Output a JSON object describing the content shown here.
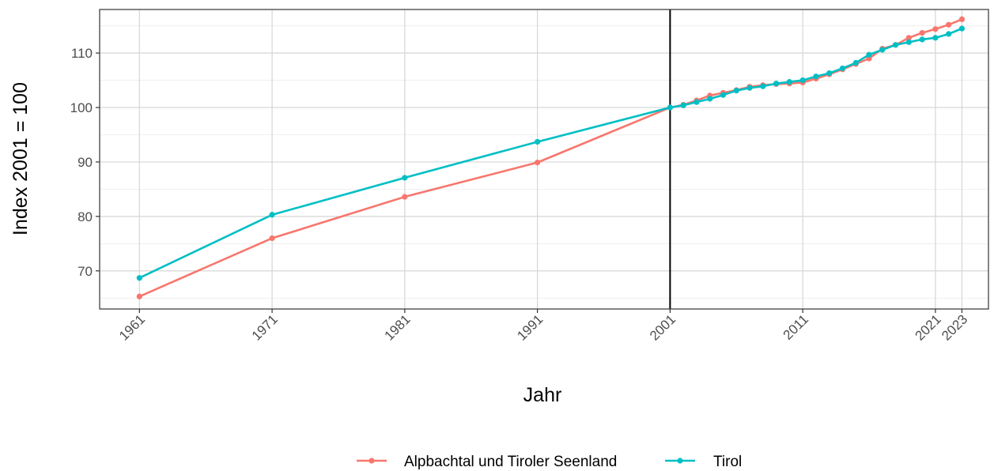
{
  "chart_data": {
    "type": "line",
    "xlabel": "Jahr",
    "ylabel": "Index 2001 = 100",
    "xlim": [
      1958,
      2025
    ],
    "ylim": [
      63,
      118
    ],
    "x_ticks": [
      1961,
      1971,
      1981,
      1991,
      2001,
      2011,
      2021,
      2023
    ],
    "y_ticks": [
      70,
      80,
      90,
      100,
      110
    ],
    "grid": true,
    "reference_line_x": 2001,
    "legend_position": "bottom",
    "series": [
      {
        "name": "Alpbachtal und Tiroler Seenland",
        "color": "#F8766D",
        "x": [
          1961,
          1971,
          1981,
          1991,
          2001,
          2002,
          2003,
          2004,
          2005,
          2006,
          2007,
          2008,
          2009,
          2010,
          2011,
          2012,
          2013,
          2014,
          2015,
          2016,
          2017,
          2018,
          2019,
          2020,
          2021,
          2022,
          2023
        ],
        "values": [
          65.3,
          76.0,
          83.6,
          89.9,
          100.0,
          100.5,
          101.3,
          102.2,
          102.7,
          103.2,
          103.8,
          104.1,
          104.3,
          104.4,
          104.6,
          105.3,
          106.1,
          107.0,
          108.0,
          109.0,
          110.8,
          111.5,
          112.8,
          113.7,
          114.4,
          115.2,
          116.2
        ]
      },
      {
        "name": "Tirol",
        "color": "#00BFC4",
        "x": [
          1961,
          1971,
          1981,
          1991,
          2001,
          2002,
          2003,
          2004,
          2005,
          2006,
          2007,
          2008,
          2009,
          2010,
          2011,
          2012,
          2013,
          2014,
          2015,
          2016,
          2017,
          2018,
          2019,
          2020,
          2021,
          2022,
          2023
        ],
        "values": [
          68.7,
          80.3,
          87.1,
          93.7,
          100.0,
          100.4,
          101.0,
          101.6,
          102.3,
          103.1,
          103.6,
          103.9,
          104.4,
          104.7,
          105.0,
          105.7,
          106.3,
          107.2,
          108.2,
          109.7,
          110.6,
          111.5,
          112.0,
          112.5,
          112.8,
          113.5,
          114.5
        ]
      }
    ]
  }
}
